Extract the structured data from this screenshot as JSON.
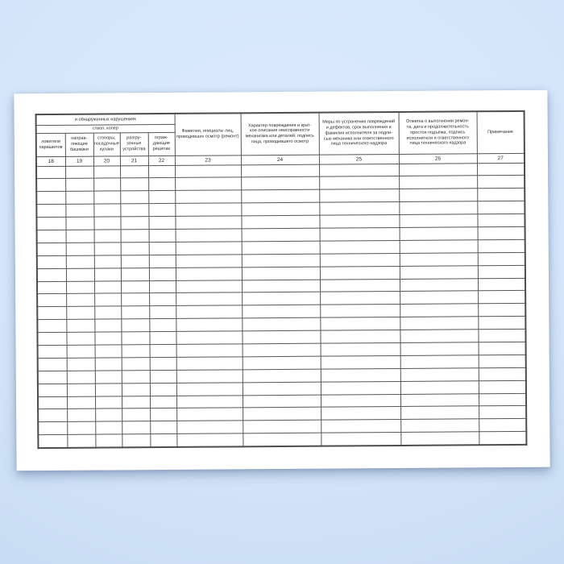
{
  "table": {
    "continuation_note": "и обнаруженных нарушениях",
    "group_header": "ствол, копер",
    "empty_row_count": 22,
    "columns": [
      {
        "id": "18",
        "label": "ловители\nпарашютов"
      },
      {
        "id": "19",
        "label": "направ-\nляющие\nбашмаки"
      },
      {
        "id": "20",
        "label": "стопоры,\nпосадочные\nкулаки"
      },
      {
        "id": "21",
        "label": "разгру-\nзочные\nустройства"
      },
      {
        "id": "22",
        "label": "ограж-\nдающие\nрешетки"
      },
      {
        "id": "23",
        "label": "Фамилия, инициалы лиц,\nпроводивших осмотр (ремонт)"
      },
      {
        "id": "24",
        "label": "Характер повреждения и крат-\nкое описание неисправности\nмеханизма или деталей, подпись\nлица, проводившего осмотр"
      },
      {
        "id": "25",
        "label": "Меры по устранению повреждений\nи дефектов, срок выполнения и\nфамилия исполнителя за подпи-\nсью механика или ответственного\nлица технического надзора"
      },
      {
        "id": "26",
        "label": "Отметка о выполнении ремон-\nта, дата и продолжительность\nпростоя подъема, подпись\nисполнителя и ответственного\nлица технического надзора"
      },
      {
        "id": "27",
        "label": "Примечание"
      }
    ]
  },
  "colors": {
    "background_blue": "#d3e5f9",
    "paper_white": "#ffffff",
    "grid_line": "#565656",
    "text": "#2a2a2a"
  }
}
